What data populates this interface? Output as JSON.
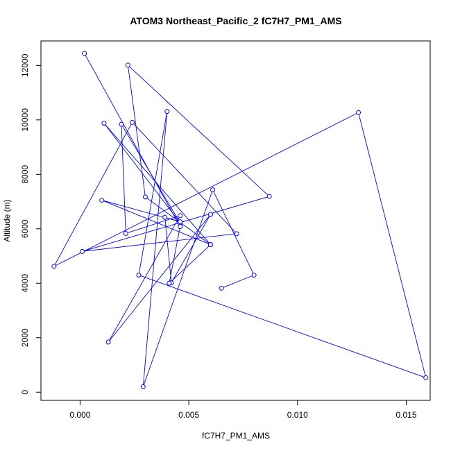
{
  "colors": {
    "series": "#0000ff",
    "axis": "#000000",
    "background": "#ffffff"
  },
  "chart_data": {
    "type": "line",
    "title": "ATOM3 Northeast_Pacific_2 fC7H7_PM1_AMS",
    "xlabel": "fC7H7_PM1_AMS",
    "ylabel": "Altitude (m)",
    "xlim": [
      -0.0018,
      0.0161
    ],
    "ylim": [
      -300,
      12900
    ],
    "xticks": [
      0.0,
      0.005,
      0.01,
      0.015
    ],
    "xtick_labels": [
      "0.000",
      "0.005",
      "0.010",
      "0.015"
    ],
    "yticks": [
      0,
      2000,
      4000,
      6000,
      8000,
      10000,
      12000
    ],
    "ytick_labels": [
      "0",
      "2000",
      "4000",
      "6000",
      "8000",
      "10000",
      "12000"
    ],
    "grid": false,
    "markers": "open-circle",
    "series": [
      {
        "points": [
          [
            0.0065,
            3820
          ],
          [
            0.008,
            4300
          ],
          [
            0.0061,
            7430
          ],
          [
            0.0029,
            200
          ],
          [
            0.004,
            10310
          ],
          [
            0.0027,
            4300
          ],
          [
            0.0159,
            530
          ],
          [
            0.0128,
            10270
          ],
          [
            -0.0012,
            4620
          ],
          [
            0.0024,
            9910
          ],
          [
            0.0072,
            5820
          ],
          [
            0.0001,
            5170
          ],
          [
            0.0087,
            7190
          ],
          [
            0.0022,
            12010
          ],
          [
            0.003,
            7170
          ],
          [
            0.006,
            5420
          ],
          [
            0.0011,
            9880
          ],
          [
            0.0046,
            6220
          ],
          [
            0.0019,
            9840
          ],
          [
            0.0021,
            5830
          ],
          [
            0.0046,
            6480
          ],
          [
            0.0013,
            1840
          ],
          [
            0.006,
            6530
          ],
          [
            0.0042,
            4020
          ],
          [
            0.0039,
            6420
          ],
          [
            0.0046,
            6260
          ],
          [
            0.001,
            7050
          ],
          [
            0.006,
            5420
          ],
          [
            0.0041,
            4000
          ],
          [
            0.0046,
            6080
          ],
          [
            0.0002,
            12440
          ]
        ]
      }
    ]
  }
}
